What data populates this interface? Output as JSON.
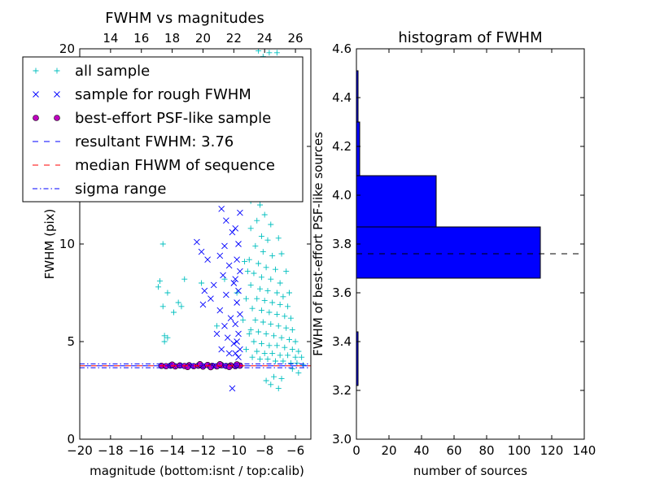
{
  "chart_data": [
    {
      "type": "scatter",
      "title": "FWHM vs magnitudes",
      "xlabel": "magnitude (bottom:isnt / top:calib)",
      "ylabel": "FWHM (pix)",
      "xlim": [
        -20,
        -5
      ],
      "ylim": [
        0,
        20
      ],
      "top_xlim": [
        12,
        27
      ],
      "xticks": [
        -20,
        -18,
        -16,
        -14,
        -12,
        -10,
        -8,
        -6
      ],
      "xtick_labels": [
        "−20",
        "−18",
        "−16",
        "−14",
        "−12",
        "−10",
        "−8",
        "−6"
      ],
      "top_xticks": [
        14,
        16,
        18,
        20,
        22,
        24,
        26
      ],
      "yticks": [
        0,
        5,
        10,
        15,
        20
      ],
      "ytick_labels": [
        "0",
        "5",
        "10",
        "15",
        "20"
      ],
      "legend": {
        "placement": "upper-left",
        "entries": [
          {
            "label": "all sample",
            "marker": "+",
            "color": "#00bfbf"
          },
          {
            "label": "sample for rough FWHM",
            "marker": "x",
            "color": "#0000ff"
          },
          {
            "label": "best-effort PSF-like sample",
            "marker": "o",
            "color": "#bf00bf"
          },
          {
            "label": "resultant FWHM: 3.76",
            "line": "dashed",
            "color": "#0000ff"
          },
          {
            "label": "median FHWM of sequence",
            "line": "dashed",
            "color": "#ff0000"
          },
          {
            "label": "sigma range",
            "line": "dashdot",
            "color": "#0000ff"
          }
        ]
      },
      "hlines": {
        "resultant": 3.76,
        "median": 3.76,
        "sigma_low": 3.66,
        "sigma_high": 3.86
      },
      "series": [
        {
          "name": "all sample",
          "color": "#00bfbf",
          "points": [
            [
              -14.6,
              10.0
            ],
            [
              -14.8,
              8.1
            ],
            [
              -14.9,
              7.8
            ],
            [
              -14.3,
              7.5
            ],
            [
              -14.6,
              6.8
            ],
            [
              -14.5,
              5.3
            ],
            [
              -14.3,
              5.2
            ],
            [
              -14.5,
              5.0
            ],
            [
              -13.2,
              8.2
            ],
            [
              -13.6,
              7.0
            ],
            [
              -13.4,
              6.8
            ],
            [
              -13.9,
              6.5
            ],
            [
              -12.1,
              8.0
            ],
            [
              -10.6,
              8.2
            ],
            [
              -11.1,
              5.8
            ],
            [
              -9.8,
              7.5
            ],
            [
              -8.4,
              19.9
            ],
            [
              -8.1,
              19.6
            ],
            [
              -7.7,
              19.8
            ],
            [
              -7.2,
              19.8
            ],
            [
              -8.6,
              17.0
            ],
            [
              -8.0,
              16.2
            ],
            [
              -8.5,
              15.2
            ],
            [
              -7.8,
              15.0
            ],
            [
              -8.2,
              14.0
            ],
            [
              -7.9,
              13.5
            ],
            [
              -8.8,
              12.8
            ],
            [
              -8.3,
              12.0
            ],
            [
              -8.0,
              11.5
            ],
            [
              -7.6,
              11.0
            ],
            [
              -8.5,
              11.2
            ],
            [
              -8.9,
              10.8
            ],
            [
              -8.2,
              10.4
            ],
            [
              -7.8,
              10.2
            ],
            [
              -8.6,
              9.9
            ],
            [
              -8.1,
              9.6
            ],
            [
              -7.5,
              9.4
            ],
            [
              -9.0,
              9.2
            ],
            [
              -8.4,
              9.0
            ],
            [
              -7.9,
              8.8
            ],
            [
              -7.3,
              8.7
            ],
            [
              -8.7,
              8.5
            ],
            [
              -8.2,
              8.3
            ],
            [
              -7.6,
              8.2
            ],
            [
              -7.0,
              8.0
            ],
            [
              -8.9,
              7.9
            ],
            [
              -8.3,
              7.7
            ],
            [
              -7.8,
              7.6
            ],
            [
              -7.2,
              7.5
            ],
            [
              -6.8,
              7.3
            ],
            [
              -8.5,
              7.2
            ],
            [
              -8.0,
              7.1
            ],
            [
              -7.5,
              7.0
            ],
            [
              -7.0,
              6.9
            ],
            [
              -6.5,
              6.8
            ],
            [
              -8.8,
              6.7
            ],
            [
              -8.2,
              6.6
            ],
            [
              -7.7,
              6.5
            ],
            [
              -7.2,
              6.4
            ],
            [
              -6.7,
              6.3
            ],
            [
              -6.3,
              6.2
            ],
            [
              -8.6,
              6.1
            ],
            [
              -8.1,
              6.0
            ],
            [
              -7.6,
              5.9
            ],
            [
              -7.1,
              5.8
            ],
            [
              -6.6,
              5.7
            ],
            [
              -6.2,
              5.6
            ],
            [
              -8.9,
              5.6
            ],
            [
              -8.4,
              5.5
            ],
            [
              -7.9,
              5.4
            ],
            [
              -7.4,
              5.3
            ],
            [
              -6.9,
              5.2
            ],
            [
              -6.4,
              5.1
            ],
            [
              -6.0,
              5.0
            ],
            [
              -8.7,
              5.0
            ],
            [
              -8.2,
              4.9
            ],
            [
              -7.7,
              4.8
            ],
            [
              -7.2,
              4.8
            ],
            [
              -6.7,
              4.7
            ],
            [
              -6.2,
              4.6
            ],
            [
              -5.8,
              4.5
            ],
            [
              -8.5,
              4.5
            ],
            [
              -8.0,
              4.4
            ],
            [
              -7.5,
              4.4
            ],
            [
              -7.0,
              4.3
            ],
            [
              -6.5,
              4.3
            ],
            [
              -6.0,
              4.2
            ],
            [
              -5.6,
              4.2
            ],
            [
              -8.8,
              4.2
            ],
            [
              -8.3,
              4.1
            ],
            [
              -7.8,
              4.1
            ],
            [
              -7.3,
              4.0
            ],
            [
              -6.8,
              4.0
            ],
            [
              -6.3,
              3.9
            ],
            [
              -5.9,
              3.9
            ],
            [
              -5.5,
              3.8
            ],
            [
              -7.9,
              3.0
            ],
            [
              -7.4,
              3.2
            ],
            [
              -6.9,
              3.1
            ],
            [
              -7.1,
              2.6
            ],
            [
              -7.6,
              2.8
            ],
            [
              -5.8,
              3.4
            ],
            [
              -6.2,
              3.6
            ],
            [
              -9.3,
              9.1
            ],
            [
              -9.1,
              8.6
            ],
            [
              -9.2,
              7.2
            ],
            [
              -9.4,
              6.1
            ],
            [
              -9.0,
              5.4
            ],
            [
              -9.2,
              4.6
            ],
            [
              -8.9,
              12.2
            ],
            [
              -7.4,
              12.5
            ],
            [
              -7.1,
              10.3
            ],
            [
              -6.9,
              9.5
            ],
            [
              -6.6,
              8.6
            ],
            [
              -6.4,
              7.5
            ]
          ]
        },
        {
          "name": "sample for rough FWHM",
          "color": "#0000ff",
          "points": [
            [
              -13.2,
              14.9
            ],
            [
              -12.7,
              14.2
            ],
            [
              -12.4,
              10.1
            ],
            [
              -12.1,
              9.6
            ],
            [
              -11.7,
              9.2
            ],
            [
              -11.9,
              7.6
            ],
            [
              -11.5,
              7.2
            ],
            [
              -12.0,
              6.9
            ],
            [
              -10.4,
              13.8
            ],
            [
              -10.2,
              12.5
            ],
            [
              -10.8,
              11.8
            ],
            [
              -10.5,
              11.2
            ],
            [
              -10.1,
              10.6
            ],
            [
              -10.6,
              9.9
            ],
            [
              -10.9,
              9.4
            ],
            [
              -10.3,
              8.9
            ],
            [
              -10.7,
              8.4
            ],
            [
              -10.0,
              8.0
            ],
            [
              -11.3,
              7.9
            ],
            [
              -10.5,
              7.4
            ],
            [
              -10.9,
              6.6
            ],
            [
              -10.2,
              6.2
            ],
            [
              -10.6,
              5.8
            ],
            [
              -11.1,
              5.4
            ],
            [
              -10.4,
              5.2
            ],
            [
              -10.0,
              4.9
            ],
            [
              -10.8,
              4.6
            ],
            [
              -10.3,
              4.4
            ],
            [
              -9.9,
              14.8
            ],
            [
              -9.7,
              13.6
            ],
            [
              -9.8,
              12.6
            ],
            [
              -9.6,
              11.6
            ],
            [
              -9.9,
              10.8
            ],
            [
              -9.7,
              10.0
            ],
            [
              -9.8,
              9.2
            ],
            [
              -9.6,
              8.6
            ],
            [
              -9.9,
              8.2
            ],
            [
              -9.7,
              7.6
            ],
            [
              -9.8,
              7.0
            ],
            [
              -9.6,
              6.4
            ],
            [
              -9.9,
              5.9
            ],
            [
              -9.7,
              5.4
            ],
            [
              -9.8,
              5.0
            ],
            [
              -9.6,
              4.6
            ],
            [
              -9.9,
              4.4
            ],
            [
              -9.7,
              4.2
            ],
            [
              -10.1,
              2.6
            ]
          ]
        },
        {
          "name": "best-effort PSF-like sample",
          "color": "#bf00bf",
          "points": [
            [
              -14.7,
              3.76
            ],
            [
              -14.4,
              3.74
            ],
            [
              -14.1,
              3.77
            ],
            [
              -13.8,
              3.73
            ],
            [
              -13.5,
              3.78
            ],
            [
              -13.2,
              3.75
            ],
            [
              -12.9,
              3.79
            ],
            [
              -12.6,
              3.74
            ],
            [
              -12.3,
              3.77
            ],
            [
              -12.0,
              3.72
            ],
            [
              -11.7,
              3.8
            ],
            [
              -11.4,
              3.76
            ],
            [
              -11.1,
              3.73
            ],
            [
              -10.8,
              3.79
            ],
            [
              -10.5,
              3.75
            ],
            [
              -10.2,
              3.78
            ],
            [
              -9.9,
              3.74
            ],
            [
              -9.6,
              3.77
            ],
            [
              -14.0,
              3.82
            ],
            [
              -13.0,
              3.7
            ],
            [
              -12.2,
              3.84
            ],
            [
              -11.5,
              3.69
            ],
            [
              -10.9,
              3.84
            ],
            [
              -10.3,
              3.7
            ],
            [
              -9.8,
              3.83
            ]
          ]
        }
      ]
    },
    {
      "type": "bar",
      "orientation": "horizontal",
      "title": "histogram of FWHM",
      "xlabel": "number of sources",
      "ylabel": "FWHM of best-effort PSF-like sources",
      "xlim": [
        0,
        140
      ],
      "ylim": [
        3.0,
        4.6
      ],
      "xticks": [
        0,
        20,
        40,
        60,
        80,
        100,
        120,
        140
      ],
      "yticks": [
        3.0,
        3.2,
        3.4,
        3.6,
        3.8,
        4.0,
        4.2,
        4.4,
        4.6
      ],
      "ytick_labels": [
        "3.0",
        "3.2",
        "3.4",
        "3.6",
        "3.8",
        "4.0",
        "4.2",
        "4.4",
        "4.6"
      ],
      "bar_color": "#0000ff",
      "bins": [
        {
          "low": 3.22,
          "high": 3.44,
          "count": 1
        },
        {
          "low": 3.66,
          "high": 3.87,
          "count": 113
        },
        {
          "low": 3.87,
          "high": 4.08,
          "count": 49
        },
        {
          "low": 4.08,
          "high": 4.3,
          "count": 2
        },
        {
          "low": 4.3,
          "high": 4.51,
          "count": 1
        }
      ],
      "hline": 3.76
    }
  ]
}
